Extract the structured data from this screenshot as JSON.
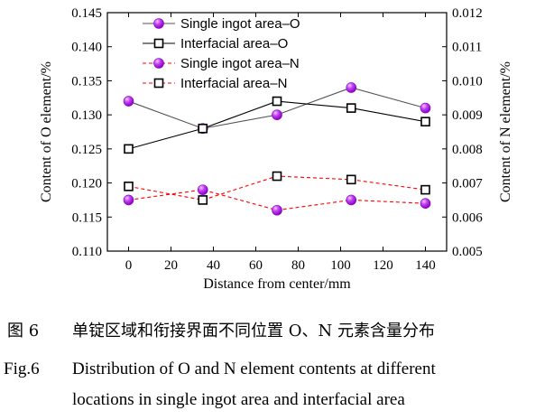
{
  "chart_data": {
    "type": "line",
    "x": [
      0,
      35,
      70,
      105,
      140
    ],
    "xlabel": "Distance from center/mm",
    "xlim": [
      -10,
      150
    ],
    "xticks": [
      "0",
      "20",
      "40",
      "60",
      "80",
      "100",
      "120",
      "140"
    ],
    "ylabel_left": "Content of O element/%",
    "ylim_left": [
      0.11,
      0.145
    ],
    "yticks_left": [
      "0.110",
      "0.115",
      "0.120",
      "0.125",
      "0.130",
      "0.135",
      "0.140",
      "0.145"
    ],
    "ylabel_right": "Content of N element/%",
    "ylim_right": [
      0.005,
      0.012
    ],
    "yticks_right": [
      "0.005",
      "0.006",
      "0.007",
      "0.008",
      "0.009",
      "0.010",
      "0.011",
      "0.012"
    ],
    "legend_position": "top-center",
    "series": [
      {
        "name": "Single ingot area–O",
        "axis": "left",
        "marker": "circle",
        "line_style": "solid",
        "line_color": "#555555",
        "values": [
          0.132,
          0.128,
          0.13,
          0.134,
          0.131
        ]
      },
      {
        "name": "Interfacial area–O",
        "axis": "left",
        "marker": "square",
        "line_style": "solid",
        "line_color": "#000000",
        "values": [
          0.125,
          0.128,
          0.132,
          0.131,
          0.129
        ]
      },
      {
        "name": "Single ingot area–N",
        "axis": "right",
        "marker": "circle",
        "line_style": "dashed",
        "line_color": "#ff0000",
        "values": [
          0.0065,
          0.0068,
          0.0062,
          0.0065,
          0.0064
        ]
      },
      {
        "name": "Interfacial area–N",
        "axis": "right",
        "marker": "square",
        "line_style": "dashed",
        "line_color": "#ff0000",
        "values": [
          0.0069,
          0.0065,
          0.0072,
          0.0071,
          0.0068
        ]
      }
    ]
  },
  "colors": {
    "circle_marker_light": "#f0c8ff",
    "circle_marker_dark": "#8a00c8",
    "square_marker_border": "#000000",
    "square_marker_fill": "#ffffff"
  },
  "caption": {
    "cn_label": "图 6",
    "cn_text": "单锭区域和衔接界面不同位置 O、N 元素含量分布",
    "en_label": "Fig.6",
    "en_line1": "Distribution of O and N element contents at different",
    "en_line2": "locations in single ingot area and interfacial area"
  }
}
